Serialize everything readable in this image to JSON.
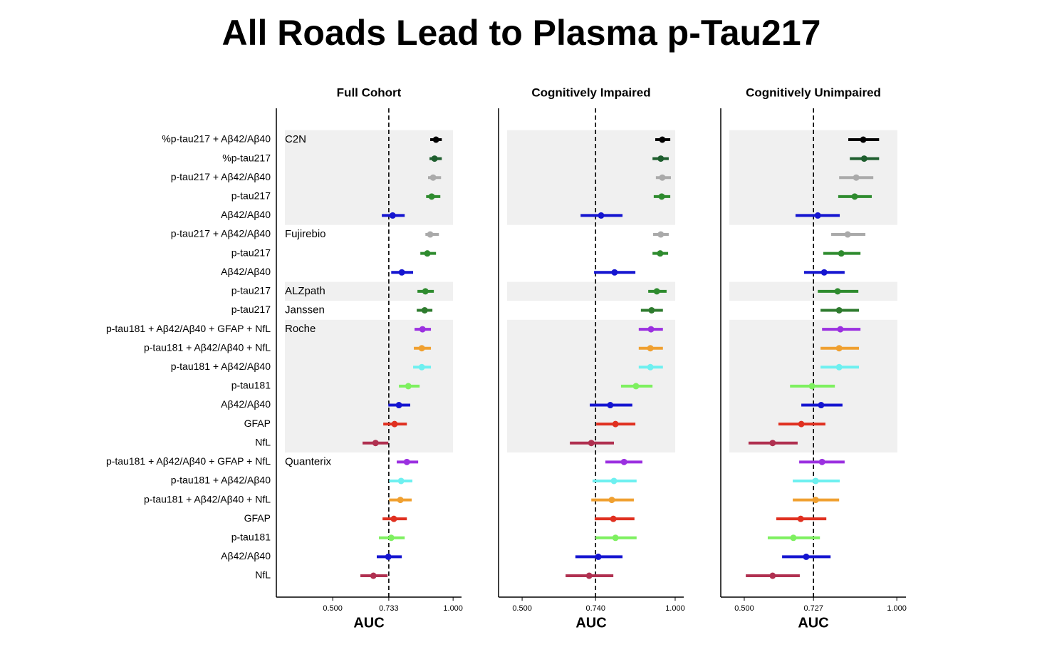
{
  "title": "All Roads Lead to Plasma p-Tau217",
  "chart_data": [
    {
      "type": "forest",
      "title": "Full Cohort",
      "xlabel": "AUC",
      "categories": [
        "%p-tau217 + Aβ42/Aβ40",
        "%p-tau217",
        "p-tau217 + Aβ42/Aβ40",
        "p-tau217",
        "Aβ42/Aβ40",
        "p-tau217 + Aβ42/Aβ40",
        "p-tau217",
        "Aβ42/Aβ40",
        "p-tau217",
        "p-tau217",
        "p-tau181 + Aβ42/Aβ40 + GFAP + NfL",
        "p-tau181 + Aβ42/Aβ40 + NfL",
        "p-tau181 + Aβ42/Aβ40",
        "p-tau181",
        "Aβ42/Aβ40",
        "GFAP",
        "NfL",
        "p-tau181 + Aβ42/Aβ40 + GFAP + NfL",
        "p-tau181 + Aβ42/Aβ40",
        "p-tau181 + Aβ42/Aβ40 + NfL",
        "GFAP",
        "p-tau181",
        "Aβ42/Aβ40",
        "NfL"
      ],
      "groups": [
        "C2N",
        null,
        null,
        null,
        null,
        "Fujirebio",
        null,
        null,
        "ALZpath",
        "Janssen",
        "Roche",
        null,
        null,
        null,
        null,
        null,
        null,
        "Quanterix",
        null,
        null,
        null,
        null,
        null,
        null
      ],
      "colors": [
        "#000000",
        "#1e5e2e",
        "#aaaaaa",
        "#2e8b2e",
        "#1515d0",
        "#aaaaaa",
        "#2e8b2e",
        "#1515d0",
        "#2e8b2e",
        "#2e7b2e",
        "#9b30e0",
        "#f0a030",
        "#6ef0f0",
        "#7ef060",
        "#1515d0",
        "#e03020",
        "#b03050",
        "#9b30e0",
        "#6ef0f0",
        "#f0a030",
        "#e03020",
        "#7ef060",
        "#1515d0",
        "#b03050"
      ],
      "xlim": [
        0.266,
        1.035
      ],
      "xticks": [
        {
          "value": 0.5,
          "label": "0.500"
        },
        {
          "value": 0.733,
          "label": "0.733"
        },
        {
          "value": 1.0,
          "label": "1.000"
        }
      ],
      "reference_line": 0.733,
      "values": [
        0.929,
        0.923,
        0.917,
        0.911,
        0.749,
        0.905,
        0.893,
        0.787,
        0.885,
        0.882,
        0.873,
        0.87,
        0.87,
        0.814,
        0.775,
        0.757,
        0.678,
        0.808,
        0.784,
        0.781,
        0.754,
        0.743,
        0.731,
        0.669
      ],
      "lower": [
        0.905,
        0.902,
        0.896,
        0.888,
        0.704,
        0.885,
        0.864,
        0.743,
        0.852,
        0.849,
        0.84,
        0.837,
        0.834,
        0.775,
        0.731,
        0.71,
        0.624,
        0.766,
        0.734,
        0.734,
        0.707,
        0.692,
        0.683,
        0.615
      ],
      "upper": [
        0.953,
        0.953,
        0.95,
        0.947,
        0.799,
        0.941,
        0.929,
        0.834,
        0.92,
        0.914,
        0.908,
        0.908,
        0.908,
        0.861,
        0.822,
        0.808,
        0.731,
        0.855,
        0.831,
        0.828,
        0.808,
        0.799,
        0.787,
        0.728
      ]
    },
    {
      "type": "forest",
      "title": "Cognitively Impaired",
      "xlabel": "AUC",
      "xlim": [
        0.423,
        1.028
      ],
      "xticks": [
        {
          "value": 0.5,
          "label": "0.500"
        },
        {
          "value": 0.74,
          "label": "0.740"
        },
        {
          "value": 1.0,
          "label": "1.000"
        }
      ],
      "reference_line": 0.74,
      "values": [
        0.958,
        0.953,
        0.958,
        0.956,
        0.758,
        0.953,
        0.951,
        0.802,
        0.94,
        0.923,
        0.921,
        0.919,
        0.919,
        0.872,
        0.788,
        0.805,
        0.726,
        0.833,
        0.8,
        0.793,
        0.798,
        0.805,
        0.749,
        0.719
      ],
      "lower": [
        0.935,
        0.926,
        0.937,
        0.93,
        0.691,
        0.928,
        0.926,
        0.735,
        0.912,
        0.888,
        0.881,
        0.881,
        0.881,
        0.823,
        0.721,
        0.742,
        0.656,
        0.772,
        0.73,
        0.726,
        0.737,
        0.74,
        0.674,
        0.642
      ],
      "upper": [
        0.984,
        0.979,
        0.986,
        0.984,
        0.828,
        0.979,
        0.977,
        0.87,
        0.972,
        0.96,
        0.96,
        0.96,
        0.96,
        0.926,
        0.86,
        0.87,
        0.8,
        0.893,
        0.874,
        0.865,
        0.867,
        0.874,
        0.828,
        0.798
      ]
    },
    {
      "type": "forest",
      "title": "Cognitively Unimpaired",
      "xlabel": "AUC",
      "xlim": [
        0.423,
        1.03
      ],
      "xticks": [
        {
          "value": 0.5,
          "label": "0.500"
        },
        {
          "value": 0.727,
          "label": "0.727"
        },
        {
          "value": 1.0,
          "label": "1.000"
        }
      ],
      "reference_line": 0.727,
      "values": [
        0.89,
        0.893,
        0.867,
        0.862,
        0.741,
        0.839,
        0.818,
        0.762,
        0.806,
        0.811,
        0.815,
        0.811,
        0.811,
        0.722,
        0.752,
        0.687,
        0.593,
        0.755,
        0.734,
        0.734,
        0.685,
        0.661,
        0.703,
        0.593
      ],
      "lower": [
        0.841,
        0.846,
        0.811,
        0.808,
        0.668,
        0.785,
        0.759,
        0.696,
        0.741,
        0.75,
        0.755,
        0.75,
        0.75,
        0.65,
        0.687,
        0.612,
        0.514,
        0.68,
        0.659,
        0.659,
        0.605,
        0.577,
        0.624,
        0.505
      ],
      "upper": [
        0.942,
        0.942,
        0.923,
        0.918,
        0.813,
        0.897,
        0.881,
        0.829,
        0.874,
        0.876,
        0.881,
        0.876,
        0.876,
        0.797,
        0.822,
        0.766,
        0.675,
        0.829,
        0.813,
        0.811,
        0.769,
        0.748,
        0.783,
        0.682
      ]
    }
  ]
}
